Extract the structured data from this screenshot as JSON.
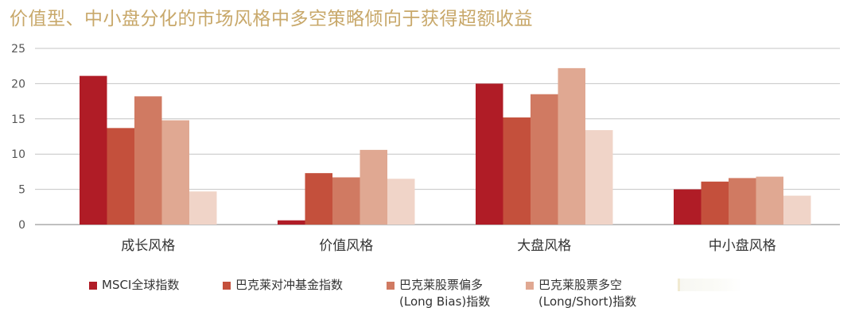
{
  "title": "价值型、中小盘分化的市场风格中多空策略倾向于获得超额收益",
  "chart_data": {
    "type": "bar",
    "title": "价值型、中小盘分化的市场风格中多空策略倾向于获得超额收益",
    "categories": [
      "成长风格",
      "价值风格",
      "大盘风格",
      "中小盘风格"
    ],
    "ylim": [
      0,
      25
    ],
    "yticks": [
      0,
      5,
      10,
      15,
      20,
      25
    ],
    "grid": true,
    "legend_position": "bottom",
    "series": [
      {
        "name": "MSCI全球指数",
        "name_line2": "",
        "color": "#b01c26",
        "values": [
          21.1,
          0.6,
          20.0,
          5.0
        ]
      },
      {
        "name": "巴克莱对冲基金指数",
        "name_line2": "",
        "color": "#c4503c",
        "values": [
          13.7,
          7.3,
          15.2,
          6.1
        ]
      },
      {
        "name": "巴克莱股票偏多",
        "name_line2": "(Long Bias)指数",
        "color": "#d07a62",
        "values": [
          18.2,
          6.7,
          18.5,
          6.6
        ]
      },
      {
        "name": "巴克莱股票多空",
        "name_line2": "(Long/Short)指数",
        "color": "#e0a892",
        "values": [
          14.8,
          10.6,
          22.2,
          6.8
        ]
      },
      {
        "name": "",
        "name_line2": "",
        "color": "#f0d4c8",
        "values": [
          4.7,
          6.5,
          13.4,
          4.1
        ]
      }
    ]
  }
}
